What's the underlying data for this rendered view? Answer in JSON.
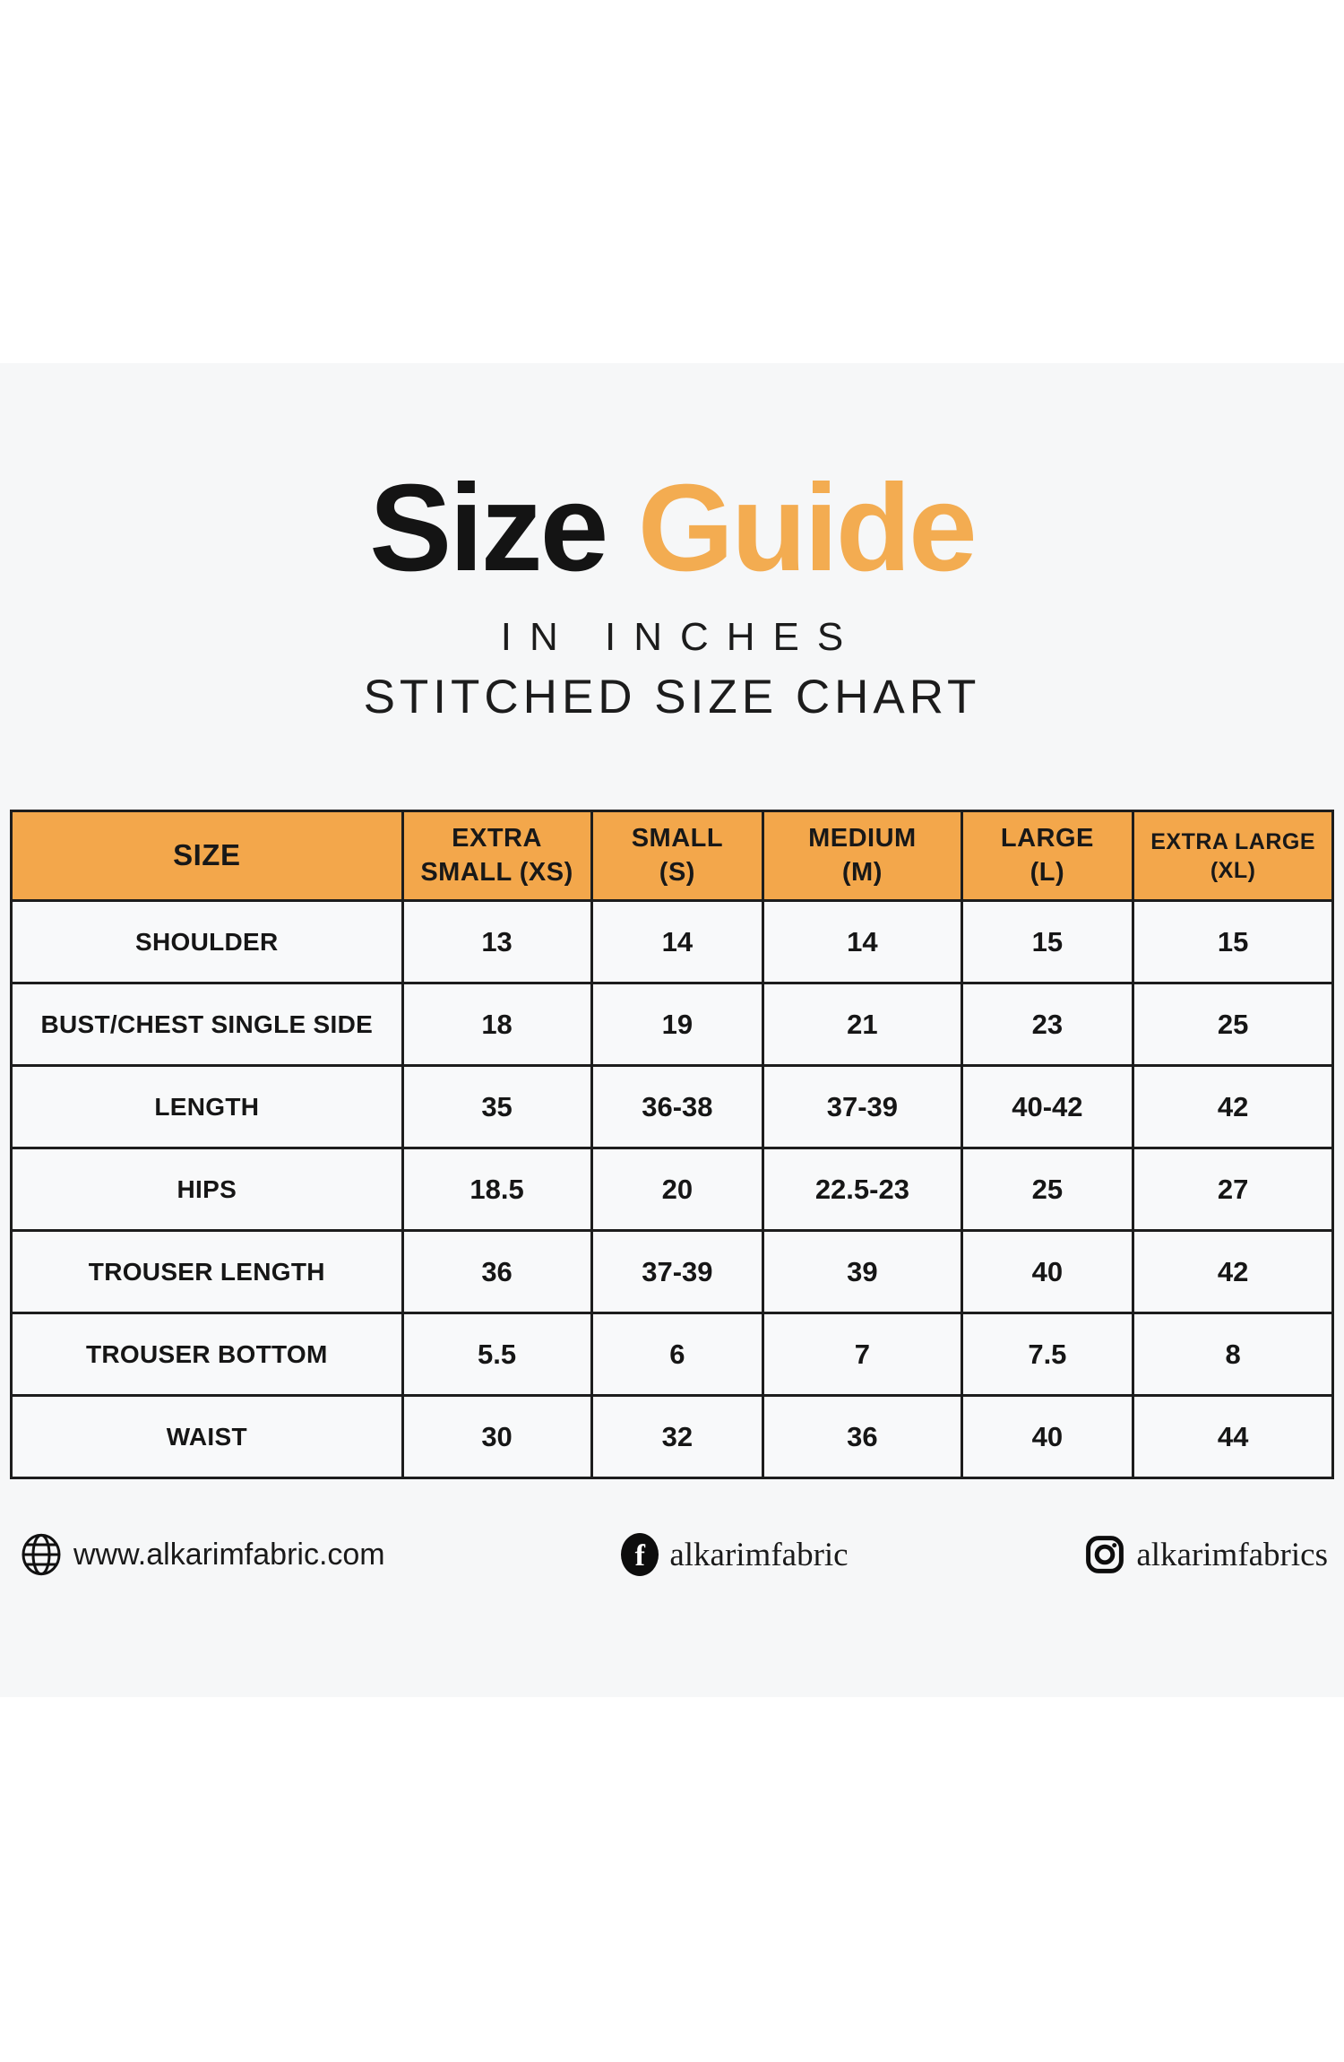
{
  "title": {
    "black": "Size",
    "orange": "Guide"
  },
  "subtitles": {
    "line1": "IN INCHES",
    "line2": "STITCHED SIZE CHART"
  },
  "colors": {
    "accent_orange_header": "#F3A74B",
    "accent_orange_title": "#F3AC51",
    "band_background": "#F6F7F8",
    "cell_background": "#F8F9FA",
    "table_border": "#1D1D1D",
    "text": "#141414"
  },
  "chart_data": {
    "type": "table",
    "title": "Size Guide",
    "subtitle": "In Inches — Stitched Size Chart",
    "unit": "inches",
    "columns": [
      [
        "SIZE"
      ],
      [
        "EXTRA",
        "SMALL (XS)"
      ],
      [
        "SMALL",
        "(S)"
      ],
      [
        "MEDIUM",
        "(M)"
      ],
      [
        "LARGE",
        "(L)"
      ],
      [
        "EXTRA LARGE",
        "(XL)"
      ]
    ],
    "rows": [
      {
        "label": "SHOULDER",
        "values": [
          "13",
          "14",
          "14",
          "15",
          "15"
        ]
      },
      {
        "label": "BUST/CHEST SINGLE SIDE",
        "values": [
          "18",
          "19",
          "21",
          "23",
          "25"
        ]
      },
      {
        "label": "LENGTH",
        "values": [
          "35",
          "36-38",
          "37-39",
          "40-42",
          "42"
        ]
      },
      {
        "label": "HIPS",
        "values": [
          "18.5",
          "20",
          "22.5-23",
          "25",
          "27"
        ]
      },
      {
        "label": "TROUSER LENGTH",
        "values": [
          "36",
          "37-39",
          "39",
          "40",
          "42"
        ]
      },
      {
        "label": "TROUSER BOTTOM",
        "values": [
          "5.5",
          "6",
          "7",
          "7.5",
          "8"
        ]
      },
      {
        "label": "WAIST",
        "values": [
          "30",
          "32",
          "36",
          "40",
          "44"
        ]
      }
    ]
  },
  "footer": {
    "website": {
      "icon": "globe-icon",
      "text": "www.alkarimfabric.com"
    },
    "facebook": {
      "icon": "facebook-icon",
      "text": "alkarimfabric"
    },
    "instagram": {
      "icon": "instagram-icon",
      "text": "alkarimfabrics"
    }
  }
}
